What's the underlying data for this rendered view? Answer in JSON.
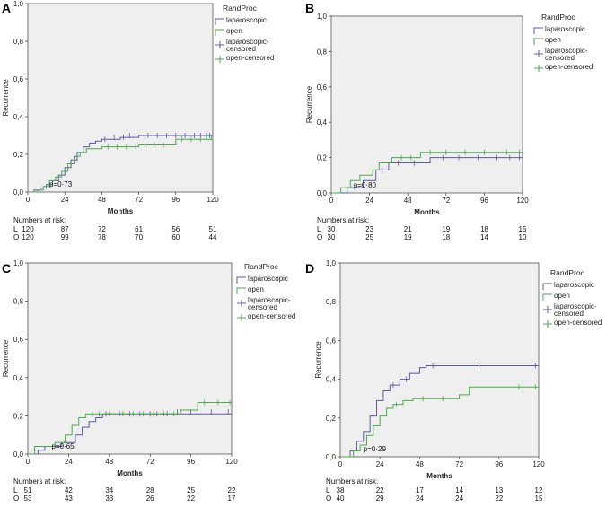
{
  "colors": {
    "laparoscopic": "#5a5aa8",
    "open": "#4caa4c",
    "plot_bg": "#efefef",
    "frame": "#555555"
  },
  "chart_data": [
    {
      "panel": "A",
      "type": "line",
      "xlabel": "Months",
      "ylabel": "Recurrence",
      "xlim": [
        0,
        120
      ],
      "ylim": [
        0,
        1.0
      ],
      "xticks": [
        "0",
        "24",
        "48",
        "72",
        "96",
        "120"
      ],
      "yticks": [
        "0,0",
        "0,2",
        "0,4",
        "0,6",
        "0,8",
        "1,0"
      ],
      "legend_title": "RandProc",
      "legend_items": [
        "laparoscopic",
        "open",
        "laparoscopic-censored",
        "open-censored"
      ],
      "pvalue": "p=0·73",
      "risk_title": "Numbers at risk:",
      "risk_rows": [
        {
          "label": "L",
          "values": [
            "120",
            "87",
            "72",
            "61",
            "56",
            "51"
          ]
        },
        {
          "label": "O",
          "values": [
            "120",
            "99",
            "78",
            "70",
            "60",
            "44"
          ]
        }
      ],
      "series": [
        {
          "name": "laparoscopic",
          "points": [
            [
              0,
              0
            ],
            [
              4,
              0.01
            ],
            [
              8,
              0.02
            ],
            [
              12,
              0.04
            ],
            [
              16,
              0.06
            ],
            [
              20,
              0.09
            ],
            [
              24,
              0.13
            ],
            [
              28,
              0.17
            ],
            [
              32,
              0.21
            ],
            [
              36,
              0.24
            ],
            [
              40,
              0.26
            ],
            [
              44,
              0.27
            ],
            [
              48,
              0.28
            ],
            [
              60,
              0.29
            ],
            [
              72,
              0.3
            ],
            [
              120,
              0.3
            ]
          ],
          "censored": [
            [
              50,
              0.28
            ],
            [
              56,
              0.29
            ],
            [
              62,
              0.29
            ],
            [
              66,
              0.3
            ],
            [
              78,
              0.3
            ],
            [
              84,
              0.3
            ],
            [
              90,
              0.3
            ],
            [
              96,
              0.3
            ],
            [
              102,
              0.3
            ],
            [
              108,
              0.3
            ],
            [
              112,
              0.3
            ],
            [
              116,
              0.3
            ],
            [
              118,
              0.3
            ]
          ]
        },
        {
          "name": "open",
          "points": [
            [
              0,
              0
            ],
            [
              6,
              0.01
            ],
            [
              10,
              0.03
            ],
            [
              14,
              0.06
            ],
            [
              18,
              0.08
            ],
            [
              22,
              0.11
            ],
            [
              26,
              0.15
            ],
            [
              30,
              0.19
            ],
            [
              34,
              0.21
            ],
            [
              38,
              0.23
            ],
            [
              42,
              0.23
            ],
            [
              48,
              0.24
            ],
            [
              72,
              0.25
            ],
            [
              96,
              0.28
            ],
            [
              120,
              0.29
            ]
          ],
          "censored": [
            [
              52,
              0.24
            ],
            [
              58,
              0.24
            ],
            [
              64,
              0.24
            ],
            [
              70,
              0.24
            ],
            [
              76,
              0.25
            ],
            [
              82,
              0.25
            ],
            [
              88,
              0.25
            ],
            [
              100,
              0.28
            ],
            [
              106,
              0.28
            ],
            [
              112,
              0.28
            ],
            [
              116,
              0.29
            ],
            [
              119,
              0.29
            ]
          ]
        }
      ]
    },
    {
      "panel": "B",
      "type": "line",
      "xlabel": "Months",
      "ylabel": "Recurrence",
      "xlim": [
        0,
        120
      ],
      "ylim": [
        0,
        1.0
      ],
      "xticks": [
        "0",
        "24",
        "48",
        "72",
        "96",
        "120"
      ],
      "yticks": [
        "0,0",
        "0,2",
        "0,4",
        "0,6",
        "0,8",
        "1,0"
      ],
      "legend_title": "RandProc",
      "legend_items": [
        "laparoscopic",
        "open",
        "laparoscopic-censored",
        "open-censored"
      ],
      "pvalue": "p=0·80",
      "risk_title": "Numbers at risk:",
      "risk_rows": [
        {
          "label": "L",
          "values": [
            "30",
            "23",
            "21",
            "19",
            "18",
            "15"
          ]
        },
        {
          "label": "O",
          "values": [
            "30",
            "25",
            "19",
            "18",
            "14",
            "10"
          ]
        }
      ],
      "series": [
        {
          "name": "laparoscopic",
          "points": [
            [
              0,
              0
            ],
            [
              10,
              0.03
            ],
            [
              20,
              0.07
            ],
            [
              28,
              0.13
            ],
            [
              36,
              0.17
            ],
            [
              62,
              0.2
            ],
            [
              120,
              0.2
            ]
          ],
          "censored": [
            [
              32,
              0.13
            ],
            [
              42,
              0.17
            ],
            [
              52,
              0.17
            ],
            [
              70,
              0.2
            ],
            [
              80,
              0.2
            ],
            [
              92,
              0.2
            ],
            [
              104,
              0.2
            ],
            [
              112,
              0.2
            ],
            [
              118,
              0.2
            ]
          ]
        },
        {
          "name": "open",
          "points": [
            [
              0,
              0
            ],
            [
              6,
              0.03
            ],
            [
              12,
              0.07
            ],
            [
              18,
              0.1
            ],
            [
              26,
              0.13
            ],
            [
              30,
              0.17
            ],
            [
              38,
              0.2
            ],
            [
              56,
              0.23
            ],
            [
              120,
              0.23
            ]
          ],
          "censored": [
            [
              44,
              0.2
            ],
            [
              50,
              0.2
            ],
            [
              62,
              0.23
            ],
            [
              72,
              0.23
            ],
            [
              84,
              0.23
            ],
            [
              96,
              0.23
            ],
            [
              110,
              0.23
            ],
            [
              118,
              0.23
            ]
          ]
        }
      ]
    },
    {
      "panel": "C",
      "type": "line",
      "xlabel": "Months",
      "ylabel": "Recurrence",
      "xlim": [
        0,
        120
      ],
      "ylim": [
        0,
        1.0
      ],
      "xticks": [
        "0",
        "24",
        "48",
        "72",
        "96",
        "120"
      ],
      "yticks": [
        "0,0",
        "0,2",
        "0,4",
        "0,6",
        "0,8",
        "1,0"
      ],
      "legend_title": "RandProc",
      "legend_items": [
        "laparoscopic",
        "open",
        "laparoscopic-censored",
        "open-censored"
      ],
      "pvalue": "p=0·65",
      "risk_title": "Numbers at risk:",
      "risk_rows": [
        {
          "label": "L",
          "values": [
            "51",
            "42",
            "34",
            "28",
            "25",
            "22"
          ]
        },
        {
          "label": "O",
          "values": [
            "53",
            "43",
            "33",
            "26",
            "22",
            "17"
          ]
        }
      ],
      "series": [
        {
          "name": "laparoscopic",
          "points": [
            [
              0,
              0
            ],
            [
              6,
              0.02
            ],
            [
              10,
              0.04
            ],
            [
              20,
              0.06
            ],
            [
              28,
              0.1
            ],
            [
              32,
              0.14
            ],
            [
              36,
              0.17
            ],
            [
              40,
              0.19
            ],
            [
              44,
              0.21
            ],
            [
              50,
              0.21
            ],
            [
              120,
              0.22
            ]
          ],
          "censored": [
            [
              46,
              0.21
            ],
            [
              54,
              0.21
            ],
            [
              60,
              0.21
            ],
            [
              66,
              0.21
            ],
            [
              72,
              0.21
            ],
            [
              76,
              0.21
            ],
            [
              82,
              0.21
            ],
            [
              88,
              0.22
            ],
            [
              96,
              0.22
            ],
            [
              108,
              0.22
            ],
            [
              118,
              0.22
            ]
          ]
        },
        {
          "name": "open",
          "points": [
            [
              0,
              0
            ],
            [
              4,
              0.04
            ],
            [
              16,
              0.06
            ],
            [
              22,
              0.1
            ],
            [
              26,
              0.15
            ],
            [
              30,
              0.19
            ],
            [
              34,
              0.21
            ],
            [
              90,
              0.23
            ],
            [
              100,
              0.27
            ],
            [
              120,
              0.27
            ]
          ],
          "censored": [
            [
              38,
              0.21
            ],
            [
              42,
              0.21
            ],
            [
              48,
              0.21
            ],
            [
              56,
              0.21
            ],
            [
              62,
              0.21
            ],
            [
              68,
              0.21
            ],
            [
              74,
              0.21
            ],
            [
              80,
              0.21
            ],
            [
              86,
              0.21
            ],
            [
              104,
              0.27
            ],
            [
              112,
              0.27
            ],
            [
              119,
              0.27
            ]
          ]
        }
      ]
    },
    {
      "panel": "D",
      "type": "line",
      "xlabel": "Months",
      "ylabel": "Recurrence",
      "xlim": [
        0,
        120
      ],
      "ylim": [
        0,
        1.0
      ],
      "xticks": [
        "0",
        "24",
        "48",
        "72",
        "96",
        "120"
      ],
      "yticks": [
        "0,0",
        "0,2",
        "0,4",
        "0,6",
        "0,8",
        "1,0"
      ],
      "legend_title": "RandProc",
      "legend_items": [
        "laparoscopic",
        "open",
        "laparoscopic-censored",
        "open-censored"
      ],
      "pvalue": "p=0·29",
      "risk_title": "Numbers at risk:",
      "risk_rows": [
        {
          "label": "L",
          "values": [
            "38",
            "22",
            "17",
            "14",
            "13",
            "12"
          ]
        },
        {
          "label": "O",
          "values": [
            "40",
            "29",
            "24",
            "24",
            "22",
            "15"
          ]
        }
      ],
      "series": [
        {
          "name": "laparoscopic",
          "points": [
            [
              0,
              0
            ],
            [
              6,
              0.03
            ],
            [
              10,
              0.08
            ],
            [
              14,
              0.13
            ],
            [
              18,
              0.21
            ],
            [
              22,
              0.29
            ],
            [
              26,
              0.34
            ],
            [
              30,
              0.37
            ],
            [
              36,
              0.4
            ],
            [
              42,
              0.43
            ],
            [
              48,
              0.46
            ],
            [
              52,
              0.47
            ],
            [
              120,
              0.47
            ]
          ],
          "censored": [
            [
              32,
              0.37
            ],
            [
              40,
              0.4
            ],
            [
              56,
              0.47
            ],
            [
              84,
              0.47
            ],
            [
              118,
              0.47
            ]
          ]
        },
        {
          "name": "open",
          "points": [
            [
              0,
              0
            ],
            [
              8,
              0.03
            ],
            [
              12,
              0.06
            ],
            [
              16,
              0.11
            ],
            [
              20,
              0.16
            ],
            [
              24,
              0.21
            ],
            [
              28,
              0.25
            ],
            [
              32,
              0.27
            ],
            [
              38,
              0.29
            ],
            [
              44,
              0.3
            ],
            [
              72,
              0.32
            ],
            [
              78,
              0.36
            ],
            [
              120,
              0.36
            ]
          ],
          "censored": [
            [
              34,
              0.27
            ],
            [
              50,
              0.3
            ],
            [
              62,
              0.3
            ],
            [
              108,
              0.36
            ],
            [
              116,
              0.36
            ],
            [
              118,
              0.36
            ]
          ]
        }
      ]
    }
  ]
}
